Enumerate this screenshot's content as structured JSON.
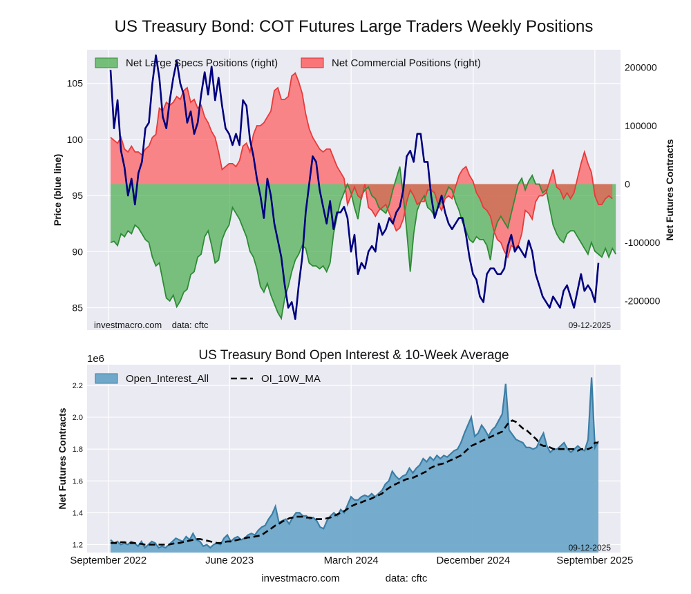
{
  "title": "US Treasury Bond: COT Futures Large Traders Weekly Positions",
  "footer": {
    "left": "investmacro.com",
    "right": "data: cftc"
  },
  "chart_data": [
    {
      "type": "line+area",
      "ylabel_left": "Price (blue line)",
      "ylabel_right": "Net Futures Contracts",
      "ylim_left": [
        83.0,
        108.0
      ],
      "ylim_right": [
        -250000,
        230000
      ],
      "yticks_left": [
        "85",
        "90",
        "95",
        "100",
        "105"
      ],
      "yticks_right": [
        "-200000",
        "-100000",
        "0",
        "100000",
        "200000"
      ],
      "legend": {
        "position": "top-left",
        "entries": [
          "Net Large Specs Positions (right)",
          "Net Commercial Positions (right)"
        ]
      },
      "colors": {
        "price": "#00007f",
        "specs": "#4caf50",
        "comm": "#ff4d4d",
        "overlap": "#b5442b"
      },
      "watermark_left": "investmacro.com    data: cftc",
      "watermark_right": "09-12-2025",
      "x_start": "2022-09-06",
      "x_end": "2025-09-09",
      "price": [
        106.2,
        101.0,
        103.5,
        99.0,
        97.5,
        95.0,
        96.5,
        94.2,
        97.0,
        98.0,
        101.0,
        101.5,
        105.0,
        107.5,
        105.5,
        102.0,
        101.0,
        103.5,
        105.5,
        107.0,
        105.0,
        104.0,
        101.5,
        102.5,
        100.5,
        101.5,
        104.0,
        106.0,
        104.0,
        106.5,
        103.5,
        105.5,
        103.0,
        101.0,
        100.5,
        99.5,
        100.5,
        99.5,
        103.5,
        103.0,
        100.0,
        98.5,
        96.5,
        95.0,
        93.0,
        96.5,
        95.0,
        92.5,
        91.0,
        89.5,
        87.0,
        85.0,
        85.5,
        84.0,
        87.0,
        89.5,
        93.5,
        96.0,
        98.5,
        98.0,
        95.5,
        94.0,
        92.5,
        94.5,
        92.0,
        93.5,
        93.5,
        94.0,
        93.0,
        90.0,
        91.5,
        88.0,
        89.0,
        88.5,
        90.0,
        90.5,
        90.0,
        92.5,
        91.5,
        92.0,
        93.0,
        92.5,
        93.5,
        94.0,
        95.5,
        98.5,
        99.0,
        98.0,
        100.5,
        100.5,
        98.0,
        98.0,
        95.0,
        93.0,
        94.0,
        95.0,
        93.5,
        92.5,
        92.0,
        92.5,
        93.0,
        93.0,
        91.5,
        89.5,
        88.0,
        87.5,
        86.0,
        85.5,
        88.0,
        88.5,
        88.5,
        88.0,
        88.0,
        88.5,
        90.5,
        91.5,
        90.0,
        90.5,
        90.0,
        89.5,
        91.0,
        90.0,
        88.0,
        87.0,
        86.0,
        85.5,
        85.0,
        86.0,
        85.5,
        85.0,
        86.5,
        87.0,
        86.0,
        85.0,
        86.5,
        88.0,
        86.5,
        87.0,
        86.5,
        85.5,
        89.0
      ],
      "specs": [
        -100000,
        -98000,
        -105000,
        -85000,
        -90000,
        -80000,
        -85000,
        -70000,
        -75000,
        -85000,
        -95000,
        -100000,
        -125000,
        -140000,
        -135000,
        -165000,
        -195000,
        -200000,
        -190000,
        -210000,
        -200000,
        -185000,
        -180000,
        -155000,
        -150000,
        -125000,
        -120000,
        -90000,
        -80000,
        -105000,
        -135000,
        -130000,
        -95000,
        -80000,
        -70000,
        -40000,
        -50000,
        -60000,
        -75000,
        -90000,
        -115000,
        -125000,
        -145000,
        -175000,
        -185000,
        -170000,
        -190000,
        -205000,
        -220000,
        -230000,
        -195000,
        -175000,
        -150000,
        -130000,
        -120000,
        -105000,
        -110000,
        -135000,
        -140000,
        -140000,
        -145000,
        -140000,
        -150000,
        -135000,
        -85000,
        -55000,
        -30000,
        -15000,
        0,
        -15000,
        -40000,
        -60000,
        -20000,
        -10000,
        -5000,
        -20000,
        -25000,
        -40000,
        -45000,
        -50000,
        -35000,
        -10000,
        10000,
        30000,
        -20000,
        -80000,
        -150000,
        -85000,
        -45000,
        -30000,
        -20000,
        -40000,
        -45000,
        -55000,
        -40000,
        -30000,
        -20000,
        -5000,
        -10000,
        -30000,
        -45000,
        -65000,
        -80000,
        -95000,
        -100000,
        -90000,
        -95000,
        -95000,
        -105000,
        -130000,
        -85000,
        -65000,
        -55000,
        -65000,
        -75000,
        -50000,
        -25000,
        0,
        10000,
        -10000,
        5000,
        15000,
        0,
        0,
        -15000,
        -10000,
        -40000,
        -70000,
        -85000,
        -95000,
        -100000,
        -85000,
        -80000,
        -80000,
        -90000,
        -100000,
        -110000,
        -120000,
        -100000,
        -115000,
        -120000,
        -125000,
        -110000,
        -125000,
        -110000,
        -120000
      ],
      "comm": [
        80000,
        75000,
        70000,
        80000,
        60000,
        55000,
        65000,
        55000,
        55000,
        50000,
        60000,
        65000,
        80000,
        85000,
        130000,
        125000,
        140000,
        135000,
        140000,
        150000,
        145000,
        160000,
        165000,
        140000,
        145000,
        130000,
        135000,
        115000,
        105000,
        90000,
        80000,
        55000,
        25000,
        30000,
        35000,
        35000,
        30000,
        40000,
        65000,
        70000,
        55000,
        85000,
        100000,
        100000,
        105000,
        115000,
        125000,
        160000,
        165000,
        145000,
        145000,
        150000,
        185000,
        190000,
        175000,
        155000,
        120000,
        95000,
        80000,
        70000,
        60000,
        55000,
        60000,
        60000,
        45000,
        30000,
        20000,
        10000,
        -35000,
        -20000,
        -5000,
        -20000,
        -25000,
        0,
        -40000,
        -45000,
        -55000,
        -45000,
        -40000,
        -35000,
        -50000,
        -65000,
        -80000,
        -75000,
        -60000,
        -30000,
        -10000,
        -20000,
        -35000,
        -30000,
        -30000,
        -10000,
        -10000,
        -15000,
        -35000,
        -45000,
        -25000,
        -20000,
        -25000,
        -5000,
        15000,
        25000,
        30000,
        15000,
        5000,
        -15000,
        -25000,
        -40000,
        -45000,
        -55000,
        -80000,
        -95000,
        -100000,
        -115000,
        -125000,
        -105000,
        -110000,
        -105000,
        -85000,
        -45000,
        -50000,
        -60000,
        -30000,
        -20000,
        -20000,
        -15000,
        5000,
        25000,
        -5000,
        -10000,
        -25000,
        -15000,
        -25000,
        -15000,
        10000,
        35000,
        55000,
        35000,
        20000,
        -20000,
        -35000,
        -35000,
        -25000,
        -20000,
        -25000
      ],
      "x_ticks": [
        "September 2022",
        "June 2023",
        "March 2024",
        "December 2024",
        "September 2025"
      ]
    },
    {
      "type": "area+line",
      "title": "US Treasury Bond Open Interest & 10-Week Average",
      "ylabel": "Net Futures Contracts",
      "offset_label": "1e6",
      "ylim": [
        1.15,
        2.33
      ],
      "yticks": [
        "1.2",
        "1.4",
        "1.6",
        "1.8",
        "2.0",
        "2.2"
      ],
      "legend": {
        "position": "top-left",
        "entries": [
          "Open_Interest_All",
          "OI_10W_MA"
        ]
      },
      "colors": {
        "oi_fill": "#6fa8c9",
        "oi_line": "#3b7ea6",
        "ma": "#000000"
      },
      "watermark_right": "09-12-2025",
      "x_ticks": [
        "September 2022",
        "June 2023",
        "March 2024",
        "December 2024",
        "September 2025"
      ],
      "open_interest": [
        1.23,
        1.21,
        1.22,
        1.2,
        1.21,
        1.2,
        1.22,
        1.21,
        1.19,
        1.22,
        1.18,
        1.2,
        1.22,
        1.21,
        1.18,
        1.19,
        1.18,
        1.2,
        1.22,
        1.24,
        1.23,
        1.22,
        1.25,
        1.23,
        1.27,
        1.23,
        1.22,
        1.19,
        1.2,
        1.18,
        1.2,
        1.21,
        1.2,
        1.24,
        1.26,
        1.22,
        1.24,
        1.25,
        1.23,
        1.24,
        1.26,
        1.27,
        1.26,
        1.29,
        1.31,
        1.32,
        1.36,
        1.39,
        1.44,
        1.34,
        1.35,
        1.36,
        1.33,
        1.37,
        1.4,
        1.4,
        1.38,
        1.38,
        1.36,
        1.37,
        1.35,
        1.31,
        1.3,
        1.35,
        1.38,
        1.4,
        1.38,
        1.42,
        1.4,
        1.45,
        1.5,
        1.48,
        1.48,
        1.5,
        1.51,
        1.5,
        1.52,
        1.5,
        1.52,
        1.54,
        1.58,
        1.6,
        1.66,
        1.63,
        1.61,
        1.63,
        1.64,
        1.68,
        1.65,
        1.68,
        1.7,
        1.74,
        1.72,
        1.75,
        1.73,
        1.76,
        1.74,
        1.76,
        1.75,
        1.77,
        1.79,
        1.8,
        1.84,
        1.9,
        1.95,
        2.0,
        1.88,
        1.9,
        1.95,
        1.92,
        1.88,
        1.92,
        1.94,
        1.98,
        2.02,
        2.21,
        1.92,
        1.89,
        1.86,
        1.85,
        1.84,
        1.81,
        1.81,
        1.8,
        1.81,
        1.86,
        1.9,
        1.82,
        1.78,
        1.8,
        1.8,
        1.82,
        1.84,
        1.8,
        1.78,
        1.8,
        1.82,
        1.8,
        1.79,
        1.86,
        2.25,
        1.81,
        1.85
      ],
      "ma_10w": [
        1.21,
        1.21,
        1.21,
        1.215,
        1.215,
        1.21,
        1.21,
        1.21,
        1.205,
        1.205,
        1.2,
        1.2,
        1.2,
        1.2,
        1.2,
        1.2,
        1.2,
        1.2,
        1.205,
        1.21,
        1.21,
        1.215,
        1.22,
        1.225,
        1.23,
        1.235,
        1.235,
        1.23,
        1.225,
        1.22,
        1.215,
        1.21,
        1.21,
        1.215,
        1.22,
        1.22,
        1.225,
        1.23,
        1.235,
        1.24,
        1.245,
        1.245,
        1.25,
        1.255,
        1.26,
        1.275,
        1.29,
        1.305,
        1.32,
        1.33,
        1.345,
        1.355,
        1.365,
        1.37,
        1.375,
        1.375,
        1.375,
        1.37,
        1.37,
        1.365,
        1.36,
        1.36,
        1.36,
        1.365,
        1.37,
        1.38,
        1.39,
        1.4,
        1.41,
        1.425,
        1.44,
        1.45,
        1.46,
        1.465,
        1.475,
        1.48,
        1.49,
        1.5,
        1.51,
        1.52,
        1.54,
        1.555,
        1.57,
        1.58,
        1.59,
        1.6,
        1.61,
        1.615,
        1.62,
        1.63,
        1.64,
        1.65,
        1.66,
        1.68,
        1.69,
        1.7,
        1.705,
        1.71,
        1.72,
        1.73,
        1.74,
        1.75,
        1.76,
        1.78,
        1.8,
        1.82,
        1.83,
        1.84,
        1.85,
        1.86,
        1.87,
        1.88,
        1.89,
        1.9,
        1.91,
        1.94,
        1.97,
        1.98,
        1.97,
        1.95,
        1.93,
        1.92,
        1.9,
        1.88,
        1.86,
        1.83,
        1.82,
        1.82,
        1.81,
        1.8,
        1.8,
        1.8,
        1.8,
        1.8,
        1.8,
        1.8,
        1.79,
        1.8,
        1.8,
        1.8,
        1.81,
        1.84,
        1.84
      ]
    }
  ]
}
